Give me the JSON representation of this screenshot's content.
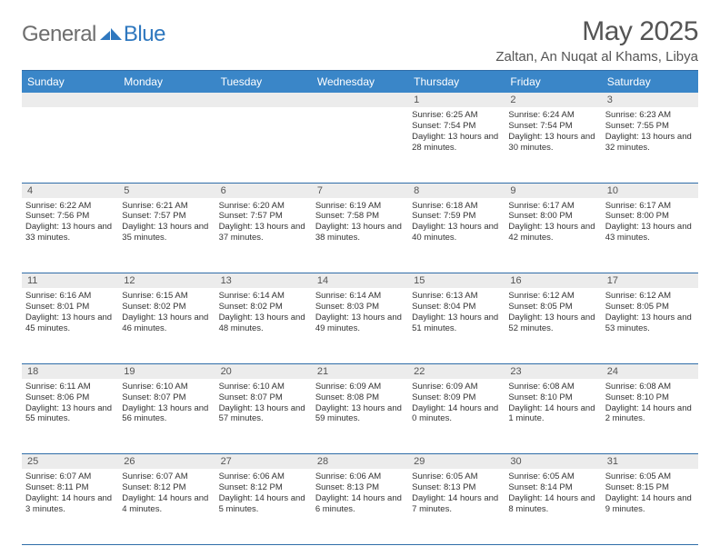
{
  "brand": {
    "general": "General",
    "blue": "Blue"
  },
  "header": {
    "title": "May 2025",
    "location": "Zaltan, An Nuqat al Khams, Libya"
  },
  "colors": {
    "accent": "#3a86c8",
    "border": "#2f6da8",
    "daybar": "#ececec",
    "text": "#333333",
    "muted": "#555555",
    "logo_grey": "#6e6e6e",
    "logo_blue": "#2f78bf",
    "background": "#ffffff"
  },
  "daysOfWeek": [
    "Sunday",
    "Monday",
    "Tuesday",
    "Wednesday",
    "Thursday",
    "Friday",
    "Saturday"
  ],
  "layout": {
    "rows": 5,
    "cols": 7,
    "firstDayIndex": 4
  },
  "days": [
    {
      "n": 1,
      "sunrise": "6:25 AM",
      "sunset": "7:54 PM",
      "daylight": "13 hours and 28 minutes."
    },
    {
      "n": 2,
      "sunrise": "6:24 AM",
      "sunset": "7:54 PM",
      "daylight": "13 hours and 30 minutes."
    },
    {
      "n": 3,
      "sunrise": "6:23 AM",
      "sunset": "7:55 PM",
      "daylight": "13 hours and 32 minutes."
    },
    {
      "n": 4,
      "sunrise": "6:22 AM",
      "sunset": "7:56 PM",
      "daylight": "13 hours and 33 minutes."
    },
    {
      "n": 5,
      "sunrise": "6:21 AM",
      "sunset": "7:57 PM",
      "daylight": "13 hours and 35 minutes."
    },
    {
      "n": 6,
      "sunrise": "6:20 AM",
      "sunset": "7:57 PM",
      "daylight": "13 hours and 37 minutes."
    },
    {
      "n": 7,
      "sunrise": "6:19 AM",
      "sunset": "7:58 PM",
      "daylight": "13 hours and 38 minutes."
    },
    {
      "n": 8,
      "sunrise": "6:18 AM",
      "sunset": "7:59 PM",
      "daylight": "13 hours and 40 minutes."
    },
    {
      "n": 9,
      "sunrise": "6:17 AM",
      "sunset": "8:00 PM",
      "daylight": "13 hours and 42 minutes."
    },
    {
      "n": 10,
      "sunrise": "6:17 AM",
      "sunset": "8:00 PM",
      "daylight": "13 hours and 43 minutes."
    },
    {
      "n": 11,
      "sunrise": "6:16 AM",
      "sunset": "8:01 PM",
      "daylight": "13 hours and 45 minutes."
    },
    {
      "n": 12,
      "sunrise": "6:15 AM",
      "sunset": "8:02 PM",
      "daylight": "13 hours and 46 minutes."
    },
    {
      "n": 13,
      "sunrise": "6:14 AM",
      "sunset": "8:02 PM",
      "daylight": "13 hours and 48 minutes."
    },
    {
      "n": 14,
      "sunrise": "6:14 AM",
      "sunset": "8:03 PM",
      "daylight": "13 hours and 49 minutes."
    },
    {
      "n": 15,
      "sunrise": "6:13 AM",
      "sunset": "8:04 PM",
      "daylight": "13 hours and 51 minutes."
    },
    {
      "n": 16,
      "sunrise": "6:12 AM",
      "sunset": "8:05 PM",
      "daylight": "13 hours and 52 minutes."
    },
    {
      "n": 17,
      "sunrise": "6:12 AM",
      "sunset": "8:05 PM",
      "daylight": "13 hours and 53 minutes."
    },
    {
      "n": 18,
      "sunrise": "6:11 AM",
      "sunset": "8:06 PM",
      "daylight": "13 hours and 55 minutes."
    },
    {
      "n": 19,
      "sunrise": "6:10 AM",
      "sunset": "8:07 PM",
      "daylight": "13 hours and 56 minutes."
    },
    {
      "n": 20,
      "sunrise": "6:10 AM",
      "sunset": "8:07 PM",
      "daylight": "13 hours and 57 minutes."
    },
    {
      "n": 21,
      "sunrise": "6:09 AM",
      "sunset": "8:08 PM",
      "daylight": "13 hours and 59 minutes."
    },
    {
      "n": 22,
      "sunrise": "6:09 AM",
      "sunset": "8:09 PM",
      "daylight": "14 hours and 0 minutes."
    },
    {
      "n": 23,
      "sunrise": "6:08 AM",
      "sunset": "8:10 PM",
      "daylight": "14 hours and 1 minute."
    },
    {
      "n": 24,
      "sunrise": "6:08 AM",
      "sunset": "8:10 PM",
      "daylight": "14 hours and 2 minutes."
    },
    {
      "n": 25,
      "sunrise": "6:07 AM",
      "sunset": "8:11 PM",
      "daylight": "14 hours and 3 minutes."
    },
    {
      "n": 26,
      "sunrise": "6:07 AM",
      "sunset": "8:12 PM",
      "daylight": "14 hours and 4 minutes."
    },
    {
      "n": 27,
      "sunrise": "6:06 AM",
      "sunset": "8:12 PM",
      "daylight": "14 hours and 5 minutes."
    },
    {
      "n": 28,
      "sunrise": "6:06 AM",
      "sunset": "8:13 PM",
      "daylight": "14 hours and 6 minutes."
    },
    {
      "n": 29,
      "sunrise": "6:05 AM",
      "sunset": "8:13 PM",
      "daylight": "14 hours and 7 minutes."
    },
    {
      "n": 30,
      "sunrise": "6:05 AM",
      "sunset": "8:14 PM",
      "daylight": "14 hours and 8 minutes."
    },
    {
      "n": 31,
      "sunrise": "6:05 AM",
      "sunset": "8:15 PM",
      "daylight": "14 hours and 9 minutes."
    }
  ],
  "labels": {
    "sunrise": "Sunrise:",
    "sunset": "Sunset:",
    "daylight": "Daylight:"
  }
}
